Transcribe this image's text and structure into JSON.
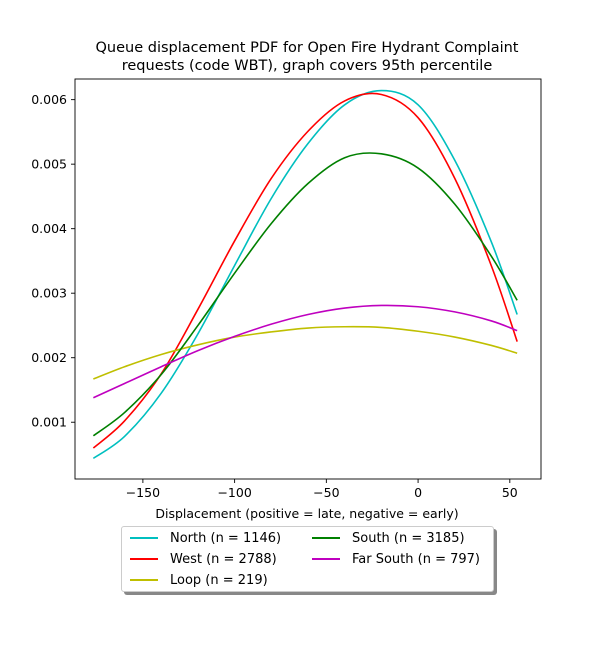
{
  "chart_data": {
    "type": "line",
    "title": "Queue displacement PDF for Open Fire Hydrant Complaint requests (code WBT), graph covers 95th percentile",
    "title_lines": [
      "Queue displacement PDF for Open Fire Hydrant Complaint",
      "requests (code WBT), graph covers 95th percentile"
    ],
    "xlabel": "Displacement (positive = late, negative = early)",
    "ylabel": "",
    "xlim": [
      -187,
      67
    ],
    "ylim": [
      0.00012,
      0.00632
    ],
    "xticks": [
      -150,
      -100,
      -50,
      0,
      50
    ],
    "xtick_labels": [
      "−150",
      "−100",
      "−50",
      "0",
      "50"
    ],
    "yticks": [
      0.001,
      0.002,
      0.003,
      0.004,
      0.005,
      0.006
    ],
    "ytick_labels": [
      "0.001",
      "0.002",
      "0.003",
      "0.004",
      "0.005",
      "0.006"
    ],
    "grid": false,
    "legend_position": "bottom-center",
    "x_range": [
      -177,
      54
    ],
    "series": [
      {
        "name": "North (n = 1146)",
        "color": "#00bfbf",
        "x": [
          -177,
          -160,
          -140,
          -120,
          -100,
          -80,
          -60,
          -40,
          -20,
          0,
          20,
          40,
          54
        ],
        "y": [
          0.00044,
          0.00078,
          0.00145,
          0.00237,
          0.00343,
          0.00447,
          0.00532,
          0.00592,
          0.00614,
          0.00592,
          0.00506,
          0.00379,
          0.00267
        ]
      },
      {
        "name": "West (n = 2788)",
        "color": "#ff0000",
        "x": [
          -177,
          -160,
          -140,
          -120,
          -100,
          -80,
          -60,
          -40,
          -20,
          0,
          20,
          40,
          54
        ],
        "y": [
          0.0006,
          0.00102,
          0.00175,
          0.00275,
          0.00381,
          0.00478,
          0.00551,
          0.00598,
          0.00608,
          0.00572,
          0.00478,
          0.00342,
          0.00225
        ]
      },
      {
        "name": "Loop (n = 219)",
        "color": "#bfbf00",
        "x": [
          -177,
          -160,
          -140,
          -120,
          -100,
          -80,
          -60,
          -40,
          -20,
          0,
          20,
          40,
          54
        ],
        "y": [
          0.00167,
          0.00186,
          0.00205,
          0.0022,
          0.00232,
          0.0024,
          0.00246,
          0.00248,
          0.00247,
          0.00241,
          0.00232,
          0.00219,
          0.00207
        ]
      },
      {
        "name": "South (n = 3185)",
        "color": "#008000",
        "x": [
          -177,
          -160,
          -140,
          -120,
          -100,
          -80,
          -60,
          -40,
          -20,
          0,
          20,
          40,
          54
        ],
        "y": [
          0.00079,
          0.00115,
          0.00174,
          0.0025,
          0.00331,
          0.00408,
          0.0047,
          0.0051,
          0.00516,
          0.00494,
          0.00438,
          0.00357,
          0.00289
        ]
      },
      {
        "name": "Far South (n = 797)",
        "color": "#bf00bf",
        "x": [
          -177,
          -160,
          -140,
          -120,
          -100,
          -80,
          -60,
          -40,
          -20,
          0,
          20,
          40,
          54
        ],
        "y": [
          0.00138,
          0.0016,
          0.00186,
          0.00211,
          0.00233,
          0.00252,
          0.00267,
          0.00277,
          0.00281,
          0.00279,
          0.00271,
          0.00257,
          0.00242
        ]
      }
    ]
  }
}
